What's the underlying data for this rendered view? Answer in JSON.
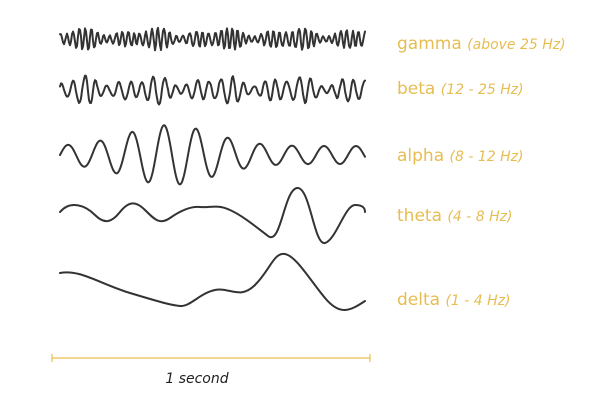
{
  "waves": [
    {
      "name": "gamma",
      "range": "(above 25 Hz)"
    },
    {
      "name": "beta",
      "range": "(12 - 25 Hz)"
    },
    {
      "name": "alpha",
      "range": "(8 - 12 Hz)"
    },
    {
      "name": "theta",
      "range": "(4 - 8 Hz)"
    },
    {
      "name": "delta",
      "range": "(1 - 4 Hz)"
    }
  ],
  "scale": {
    "label": "1 second"
  }
}
